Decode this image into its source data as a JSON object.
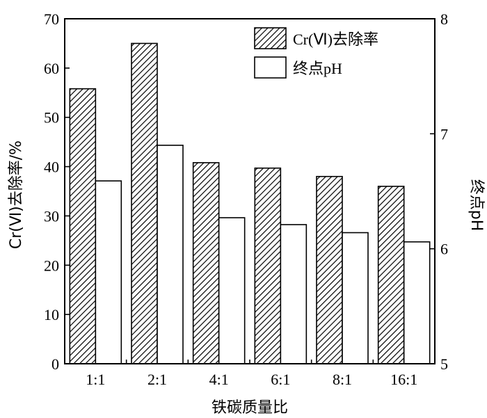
{
  "chart_data": {
    "type": "bar",
    "xlabel": "铁碳质量比",
    "ylabel": "Cr(Ⅵ)去除率/%",
    "y2label": "终点pH",
    "categories": [
      "1:1",
      "2:1",
      "4:1",
      "6:1",
      "8:1",
      "16:1"
    ],
    "ylim": [
      0,
      70
    ],
    "y2lim": [
      5,
      8
    ],
    "yticks": [
      0,
      10,
      20,
      30,
      40,
      50,
      60,
      70
    ],
    "y2ticks": [
      5,
      6,
      7,
      8
    ],
    "legend_position": "top-right",
    "series": [
      {
        "name": "Cr(Ⅵ)去除率",
        "axis": "left",
        "pattern": "hatched",
        "values": [
          55.8,
          65.0,
          40.8,
          39.7,
          38.0,
          36.0
        ]
      },
      {
        "name": "终点pH",
        "axis": "right",
        "pattern": "white",
        "values": [
          6.59,
          6.9,
          6.27,
          6.21,
          6.14,
          6.06
        ]
      }
    ]
  }
}
